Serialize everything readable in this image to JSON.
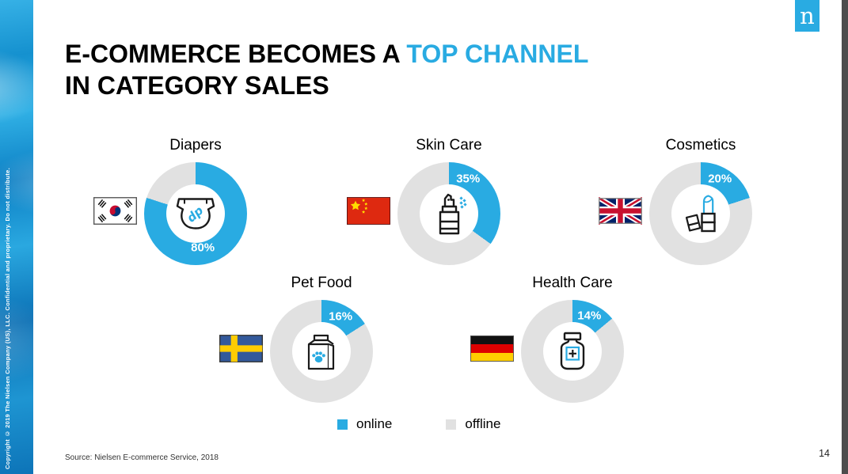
{
  "slide": {
    "title": {
      "line1_black": "E-COMMERCE BECOMES A ",
      "line1_blue": "TOP CHANNEL",
      "line2": "IN CATEGORY SALES"
    },
    "sidebar_copyright": "Copyright © 2019 The Nielsen Company (US), LLC. Confidential and proprietary. Do not distribute.",
    "logo_letter": "n",
    "source": "Source: Nielsen E-commerce Service, 2018",
    "page_number": "14"
  },
  "legend": {
    "items": [
      {
        "label": "online",
        "color": "#29ABE2"
      },
      {
        "label": "offline",
        "color": "#E1E1E1"
      }
    ]
  },
  "colors": {
    "online_blue": "#29ABE2",
    "offline_gray": "#E1E1E1",
    "title_accent_blue": "#29ABE2",
    "logo_blue": "#29ABE2",
    "right_edge_gray": "#4D4D4D"
  },
  "chart_data": {
    "type": "pie",
    "subtype": "donut",
    "title": "E-COMMERCE BECOMES A TOP CHANNEL IN CATEGORY SALES",
    "legend_entries": [
      "online",
      "offline"
    ],
    "legend_position": "bottom",
    "charts": [
      {
        "category": "Diapers",
        "country_flag": "south-korea",
        "center_icon": "diaper-icon",
        "online_pct": 80,
        "offline_pct": 20,
        "data_label": "80%"
      },
      {
        "category": "Skin Care",
        "country_flag": "china",
        "center_icon": "spray-bottle-icon",
        "online_pct": 35,
        "offline_pct": 65,
        "data_label": "35%"
      },
      {
        "category": "Cosmetics",
        "country_flag": "united-kingdom",
        "center_icon": "lipstick-icon",
        "online_pct": 20,
        "offline_pct": 80,
        "data_label": "20%"
      },
      {
        "category": "Pet Food",
        "country_flag": "sweden",
        "center_icon": "pet-food-bag-icon",
        "online_pct": 16,
        "offline_pct": 84,
        "data_label": "16%"
      },
      {
        "category": "Health Care",
        "country_flag": "germany",
        "center_icon": "medicine-bottle-icon",
        "online_pct": 14,
        "offline_pct": 86,
        "data_label": "14%"
      }
    ]
  }
}
